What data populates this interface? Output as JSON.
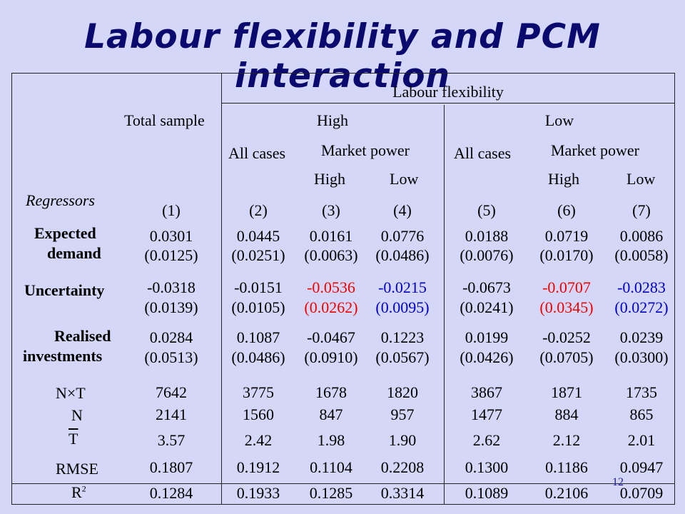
{
  "title": "Labour flexibility and PCM interaction",
  "page_number": "12",
  "header": {
    "labour_flexibility": "Labour flexibility",
    "total_sample": "Total sample",
    "high": "High",
    "low": "Low",
    "all_cases": "All cases",
    "market_power": "Market power",
    "mp_high": "High",
    "mp_low": "Low",
    "regressors": "Regressors",
    "col_numbers": [
      "(1)",
      "(2)",
      "(3)",
      "(4)",
      "(5)",
      "(6)",
      "(7)"
    ]
  },
  "rows": {
    "expected_demand": {
      "label_line1": "Expected",
      "label_line2": "demand",
      "coef": [
        "0.0301",
        "0.0445",
        "0.0161",
        "0.0776",
        "0.0188",
        "0.0719",
        "0.0086"
      ],
      "se": [
        "(0.0125)",
        "(0.0251)",
        "(0.0063)",
        "(0.0486)",
        "(0.0076)",
        "(0.0170)",
        "(0.0058)"
      ]
    },
    "uncertainty": {
      "label": "Uncertainty",
      "coef": [
        "-0.0318",
        "-0.0151",
        "-0.0536",
        "-0.0215",
        "-0.0673",
        "-0.0707",
        "-0.0283"
      ],
      "se": [
        "(0.0139)",
        "(0.0105)",
        "(0.0262)",
        "(0.0095)",
        "(0.0241)",
        "(0.0345)",
        "(0.0272)"
      ]
    },
    "realised_investments": {
      "label_line1": "Realised",
      "label_line2": "investments",
      "coef": [
        "0.0284",
        "0.1087",
        "-0.0467",
        "0.1223",
        "0.0199",
        "-0.0252",
        "0.0239"
      ],
      "se": [
        "(0.0513)",
        "(0.0486)",
        "(0.0910)",
        "(0.0567)",
        "(0.0426)",
        "(0.0705)",
        "(0.0300)"
      ]
    },
    "nxt": {
      "label": "N×T",
      "values": [
        "7642",
        "3775",
        "1678",
        "1820",
        "3867",
        "1871",
        "1735"
      ]
    },
    "n": {
      "label": "N",
      "values": [
        "2141",
        "1560",
        "847",
        "957",
        "1477",
        "884",
        "865"
      ]
    },
    "tbar": {
      "label": "T",
      "values": [
        "3.57",
        "2.42",
        "1.98",
        "1.90",
        "2.62",
        "2.12",
        "2.01"
      ]
    },
    "rmse": {
      "label": "RMSE",
      "values": [
        "0.1807",
        "0.1912",
        "0.1104",
        "0.2208",
        "0.1300",
        "0.1186",
        "0.0947"
      ]
    },
    "r2": {
      "label": "R",
      "label_sup": "2",
      "values": [
        "0.1284",
        "0.1933",
        "0.1285",
        "0.3314",
        "0.1089",
        "0.2106",
        "0.0709"
      ]
    }
  },
  "colors": {
    "background": "#d4d7f7",
    "title": "#0a0a6e",
    "high_mp_highlight": "#ee0000",
    "low_mp_highlight": "#0000cc"
  }
}
